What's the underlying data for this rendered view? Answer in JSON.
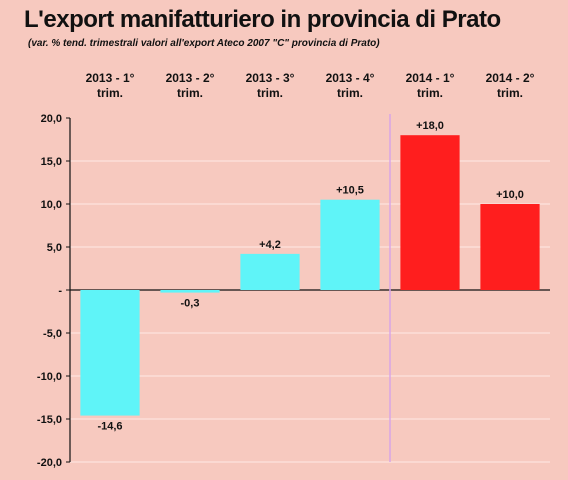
{
  "title": "L'export manifatturiero in provincia di Prato",
  "subtitle": "(var. % tend. trimestrali valori all'export Ateco 2007 \"C\" provincia di Prato)",
  "colors": {
    "background": "#f7c9bf",
    "series_2013": "#5ff4f8",
    "series_2014": "#ff1e1e",
    "divider": "#d9a6e6"
  },
  "chart_data": {
    "type": "bar",
    "categories": [
      [
        "2013 - 1°",
        "trim."
      ],
      [
        "2013 - 2°",
        "trim."
      ],
      [
        "2013 - 3°",
        "trim."
      ],
      [
        "2013 - 4°",
        "trim."
      ],
      [
        "2014 - 1°",
        "trim."
      ],
      [
        "2014 - 2°",
        "trim."
      ]
    ],
    "values": [
      -14.6,
      -0.3,
      4.2,
      10.5,
      18.0,
      10.0
    ],
    "value_labels": [
      "-14,6",
      "-0,3",
      "+4,2",
      "+10,5",
      "+18,0",
      "+10,0"
    ],
    "bar_colors": [
      "#5ff4f8",
      "#5ff4f8",
      "#5ff4f8",
      "#5ff4f8",
      "#ff1e1e",
      "#ff1e1e"
    ],
    "ylim": [
      -20,
      20
    ],
    "yticks": [
      20,
      15,
      10,
      5,
      0,
      -5,
      -10,
      -15,
      -20
    ],
    "ytick_labels": [
      "20,0",
      "15,0",
      "10,0",
      "5,0",
      "-",
      "-5,0",
      "-10,0",
      "-15,0",
      "-20,0"
    ],
    "grid": true,
    "category_labels_position": "top",
    "divider_after_category": 4
  }
}
